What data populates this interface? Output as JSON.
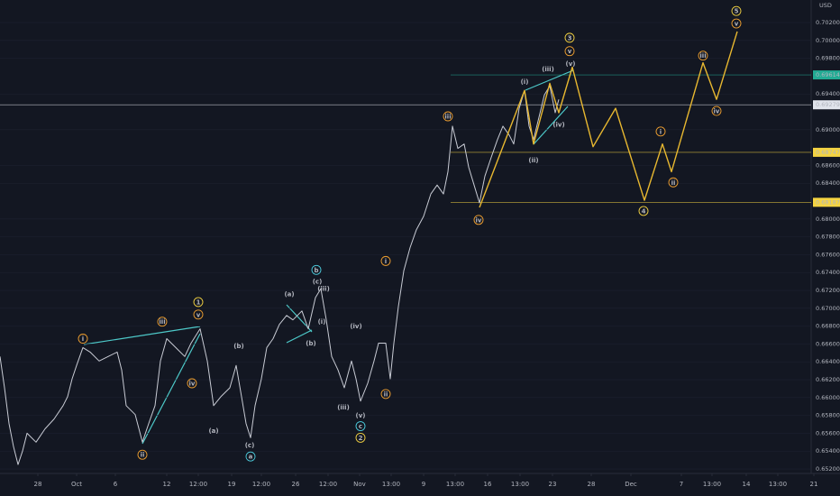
{
  "chart_data": {
    "type": "line",
    "currency": "USD",
    "xlim": [
      0,
      90
    ],
    "ylim": [
      0.6515,
      0.70453
    ],
    "xticks": [
      {
        "value": 4.2,
        "label": "28"
      },
      {
        "value": 8.5,
        "label": "Oct"
      },
      {
        "value": 12.8,
        "label": "6"
      },
      {
        "value": 18.5,
        "label": "12"
      },
      {
        "value": 22.0,
        "label": "12:00"
      },
      {
        "value": 25.7,
        "label": "19"
      },
      {
        "value": 29.0,
        "label": "12:00"
      },
      {
        "value": 32.8,
        "label": "26"
      },
      {
        "value": 36.4,
        "label": "12:00"
      },
      {
        "value": 39.9,
        "label": "Nov"
      },
      {
        "value": 43.4,
        "label": "13:00"
      },
      {
        "value": 47.0,
        "label": "9"
      },
      {
        "value": 50.5,
        "label": "13:00"
      },
      {
        "value": 54.1,
        "label": "16"
      },
      {
        "value": 57.7,
        "label": "13:00"
      },
      {
        "value": 61.3,
        "label": "23"
      },
      {
        "value": 65.6,
        "label": "28"
      },
      {
        "value": 70.0,
        "label": "Dec"
      },
      {
        "value": 75.6,
        "label": "7"
      },
      {
        "value": 79.0,
        "label": "13:00"
      },
      {
        "value": 82.8,
        "label": "14"
      },
      {
        "value": 86.3,
        "label": "13:00"
      },
      {
        "value": 90.3,
        "label": "21"
      }
    ],
    "yticks": [
      {
        "value": 0.652,
        "label": "0.65200"
      },
      {
        "value": 0.654,
        "label": "0.65400"
      },
      {
        "value": 0.656,
        "label": "0.65600"
      },
      {
        "value": 0.658,
        "label": "0.65800"
      },
      {
        "value": 0.66,
        "label": "0.66000"
      },
      {
        "value": 0.662,
        "label": "0.66200"
      },
      {
        "value": 0.664,
        "label": "0.66400"
      },
      {
        "value": 0.666,
        "label": "0.66600"
      },
      {
        "value": 0.668,
        "label": "0.66800"
      },
      {
        "value": 0.67,
        "label": "0.67000"
      },
      {
        "value": 0.672,
        "label": "0.67200"
      },
      {
        "value": 0.674,
        "label": "0.67400"
      },
      {
        "value": 0.676,
        "label": "0.67600"
      },
      {
        "value": 0.678,
        "label": "0.67800"
      },
      {
        "value": 0.68,
        "label": "0.68000"
      },
      {
        "value": 0.684,
        "label": "0.68400"
      },
      {
        "value": 0.686,
        "label": "0.68600"
      },
      {
        "value": 0.69,
        "label": "0.69000"
      },
      {
        "value": 0.694,
        "label": "0.69400"
      },
      {
        "value": 0.698,
        "label": "0.69800"
      },
      {
        "value": 0.7,
        "label": "0.70000"
      },
      {
        "value": 0.702,
        "label": "0.70200"
      }
    ],
    "series": [
      {
        "name": "price",
        "color": "#c8cbd4",
        "x": [
          0,
          0.5,
          1,
          1.5,
          2,
          2.5,
          3,
          4,
          5,
          6,
          7,
          7.5,
          8,
          8.5,
          9.2,
          10,
          11,
          12,
          13,
          13.5,
          14,
          15,
          15.8,
          16.5,
          17.2,
          17.8,
          18.5,
          19.5,
          20.5,
          21.2,
          22.2,
          23,
          23.7,
          24.5,
          25.5,
          26.2,
          26.8,
          27.3,
          27.8,
          28.3,
          29,
          29.6,
          30.3,
          31,
          31.8,
          32.5,
          33.5,
          34.2,
          35,
          35.6,
          36.2,
          36.8,
          37.5,
          38.2,
          39,
          39.5,
          40,
          40.8,
          41.5,
          42,
          42.8,
          43.3,
          43.7,
          44.2,
          44.8,
          45.5,
          46.2,
          47,
          47.8,
          48.5,
          49.2,
          49.7,
          50.2,
          50.8,
          51.5,
          52,
          52.6,
          53.2,
          53.8,
          54.5,
          55.2,
          55.8,
          56.5,
          57,
          57.6,
          58.2,
          58.7,
          59.2,
          59.8,
          60.4,
          61,
          61.6,
          62
        ],
        "values": [
          0.6646,
          0.6611,
          0.6571,
          0.6545,
          0.6525,
          0.654,
          0.656,
          0.655,
          0.6565,
          0.6576,
          0.6591,
          0.6601,
          0.6621,
          0.6636,
          0.6656,
          0.6651,
          0.6641,
          0.6646,
          0.6651,
          0.6631,
          0.6591,
          0.6581,
          0.655,
          0.6571,
          0.6591,
          0.6641,
          0.6666,
          0.6656,
          0.6646,
          0.6661,
          0.6677,
          0.6641,
          0.6591,
          0.6601,
          0.6611,
          0.6636,
          0.6601,
          0.6571,
          0.6555,
          0.6591,
          0.6621,
          0.6656,
          0.6666,
          0.6682,
          0.6692,
          0.6687,
          0.6697,
          0.6677,
          0.6712,
          0.6722,
          0.6687,
          0.6646,
          0.6631,
          0.6611,
          0.6641,
          0.6621,
          0.6596,
          0.6616,
          0.6641,
          0.6661,
          0.6661,
          0.6621,
          0.6661,
          0.6702,
          0.6742,
          0.6768,
          0.6788,
          0.6803,
          0.6828,
          0.6838,
          0.6828,
          0.6853,
          0.6904,
          0.6879,
          0.6884,
          0.6858,
          0.6838,
          0.6818,
          0.6848,
          0.6869,
          0.6889,
          0.6904,
          0.6894,
          0.6884,
          0.6924,
          0.6944,
          0.6904,
          0.6889,
          0.6914,
          0.6939,
          0.6949,
          0.6919,
          0.6934
        ]
      },
      {
        "name": "projection",
        "color": "#e8b830",
        "x": [
          53.2,
          58.2,
          59.2,
          61.0,
          62.0,
          63.5,
          65.8,
          68.3,
          71.5,
          73.5,
          74.5,
          78.0,
          79.5,
          81.8
        ],
        "values": [
          0.6813,
          0.6944,
          0.6884,
          0.6952,
          0.6919,
          0.697,
          0.6881,
          0.6924,
          0.6821,
          0.6884,
          0.6853,
          0.6975,
          0.6934,
          0.701
        ]
      }
    ],
    "levels": [
      {
        "value": 0.69614,
        "color": "#22ab94"
      },
      {
        "value": 0.69279,
        "color": "#e0e3eb"
      },
      {
        "value": 0.68747,
        "color": "#f5d442"
      },
      {
        "value": 0.68187,
        "color": "#f5d442"
      }
    ],
    "annotations": [
      {
        "text": "i",
        "x": 9.2,
        "y": 0.6666,
        "color": "#f0a030",
        "circled": true
      },
      {
        "text": "ii",
        "x": 15.8,
        "y": 0.6536,
        "color": "#f0a030",
        "circled": true
      },
      {
        "text": "iii",
        "x": 18.0,
        "y": 0.6685,
        "color": "#f0a030",
        "circled": true
      },
      {
        "text": "iv",
        "x": 21.3,
        "y": 0.6616,
        "color": "#f0a030",
        "circled": true
      },
      {
        "text": "1",
        "x": 22.0,
        "y": 0.6707,
        "color": "#f5d442",
        "circled": true
      },
      {
        "text": "v",
        "x": 22.0,
        "y": 0.6693,
        "color": "#f0a030",
        "circled": true
      },
      {
        "text": "(a)",
        "x": 23.7,
        "y": 0.6563,
        "color": "#f5d442",
        "circled": false
      },
      {
        "text": "(b)",
        "x": 26.5,
        "y": 0.6658,
        "color": "#f5d442",
        "circled": false
      },
      {
        "text": "(c)",
        "x": 27.7,
        "y": 0.6547,
        "color": "#f5d442",
        "circled": false
      },
      {
        "text": "a",
        "x": 27.8,
        "y": 0.6534,
        "color": "#4dd0e1",
        "circled": true
      },
      {
        "text": "(a)",
        "x": 32.1,
        "y": 0.6716,
        "color": "#f5d442",
        "circled": false
      },
      {
        "text": "(b)",
        "x": 34.5,
        "y": 0.6661,
        "color": "#f5d442",
        "circled": false
      },
      {
        "text": "b",
        "x": 35.1,
        "y": 0.6743,
        "color": "#4dd0e1",
        "circled": true
      },
      {
        "text": "(c)",
        "x": 35.2,
        "y": 0.673,
        "color": "#f5d442",
        "circled": false
      },
      {
        "text": "(iii)",
        "x": 35.9,
        "y": 0.6722,
        "color": "#f5d442",
        "circled": false
      },
      {
        "text": "(i)",
        "x": 35.7,
        "y": 0.6685,
        "color": "#f5d442",
        "circled": false
      },
      {
        "text": "(iv)",
        "x": 39.5,
        "y": 0.668,
        "color": "#f5d442",
        "circled": false
      },
      {
        "text": "(iii)",
        "x": 38.1,
        "y": 0.6589,
        "color": "#f5d442",
        "circled": false
      },
      {
        "text": "(v)",
        "x": 40.0,
        "y": 0.658,
        "color": "#f5d442",
        "circled": false
      },
      {
        "text": "c",
        "x": 40.0,
        "y": 0.6568,
        "color": "#4dd0e1",
        "circled": true
      },
      {
        "text": "2",
        "x": 40.0,
        "y": 0.6555,
        "color": "#f5d442",
        "circled": true
      },
      {
        "text": "i",
        "x": 42.8,
        "y": 0.6753,
        "color": "#f0a030",
        "circled": true
      },
      {
        "text": "ii",
        "x": 42.8,
        "y": 0.6604,
        "color": "#f0a030",
        "circled": true
      },
      {
        "text": "iii",
        "x": 49.7,
        "y": 0.6915,
        "color": "#f0a030",
        "circled": true
      },
      {
        "text": "iv",
        "x": 53.1,
        "y": 0.6799,
        "color": "#f0a030",
        "circled": true
      },
      {
        "text": "(i)",
        "x": 58.2,
        "y": 0.6954,
        "color": "#f5d442",
        "circled": false
      },
      {
        "text": "(ii)",
        "x": 59.2,
        "y": 0.6866,
        "color": "#f5d442",
        "circled": false
      },
      {
        "text": "(iii)",
        "x": 60.8,
        "y": 0.6968,
        "color": "#f5d442",
        "circled": false
      },
      {
        "text": "(iv)",
        "x": 62.0,
        "y": 0.6906,
        "color": "#f5d442",
        "circled": false
      },
      {
        "text": "(v)",
        "x": 63.3,
        "y": 0.6974,
        "color": "#f5d442",
        "circled": false
      },
      {
        "text": "v",
        "x": 63.2,
        "y": 0.6988,
        "color": "#f0a030",
        "circled": true
      },
      {
        "text": "3",
        "x": 63.2,
        "y": 0.7003,
        "color": "#f5d442",
        "circled": true
      },
      {
        "text": "4",
        "x": 71.4,
        "y": 0.6809,
        "color": "#f5d442",
        "circled": true
      },
      {
        "text": "i",
        "x": 73.3,
        "y": 0.6898,
        "color": "#f0a030",
        "circled": true
      },
      {
        "text": "ii",
        "x": 74.7,
        "y": 0.6841,
        "color": "#f0a030",
        "circled": true
      },
      {
        "text": "iii",
        "x": 78.0,
        "y": 0.6983,
        "color": "#f0a030",
        "circled": true
      },
      {
        "text": "iv",
        "x": 79.5,
        "y": 0.6921,
        "color": "#f0a030",
        "circled": true
      },
      {
        "text": "5",
        "x": 81.7,
        "y": 0.7033,
        "color": "#f5d442",
        "circled": true
      },
      {
        "text": "v",
        "x": 81.7,
        "y": 0.7019,
        "color": "#f0a030",
        "circled": true
      }
    ]
  }
}
